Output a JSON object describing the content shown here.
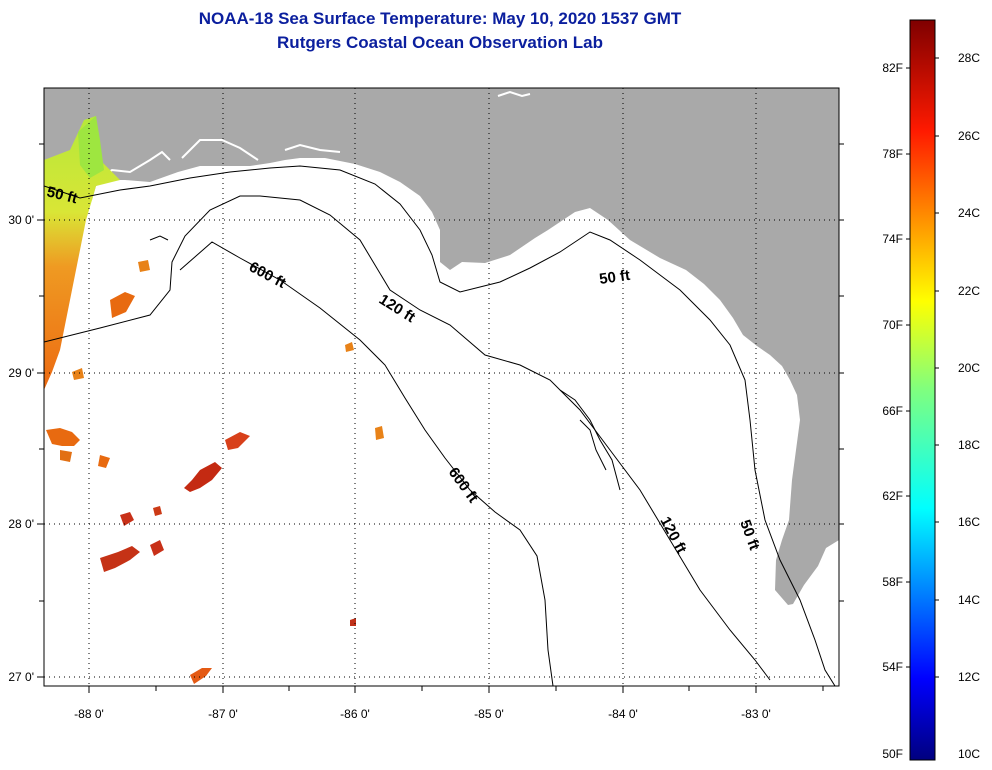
{
  "title": {
    "line1": "NOAA-18 Sea Surface Temperature:  May 10, 2020 1537 GMT",
    "line2": "Rutgers Coastal Ocean Observation Lab"
  },
  "map": {
    "lon_labels": [
      "-88 0'",
      "-87 0'",
      "-86 0'",
      "-85 0'",
      "-84 0'",
      "-83 0'"
    ],
    "lat_labels": [
      "30 0'",
      "29 0'",
      "28 0'",
      "27 0'"
    ],
    "contour_labels": {
      "c50_west": "50 ft",
      "c600_north": "600 ft",
      "c120_north": "120 ft",
      "c50_east": "50 ft",
      "c600_south": "600 ft",
      "c120_south": "120 ft",
      "c50_south": "50 ft"
    },
    "colors": {
      "land": "#a9a9a9",
      "water": "#ffffff",
      "contour": "#000000"
    }
  },
  "colorbar": {
    "fahrenheit_labels": [
      "82F",
      "78F",
      "74F",
      "70F",
      "66F",
      "62F",
      "58F",
      "54F",
      "50F"
    ],
    "celsius_labels": [
      "28C",
      "26C",
      "24C",
      "22C",
      "20C",
      "18C",
      "16C",
      "14C",
      "12C",
      "10C"
    ]
  }
}
